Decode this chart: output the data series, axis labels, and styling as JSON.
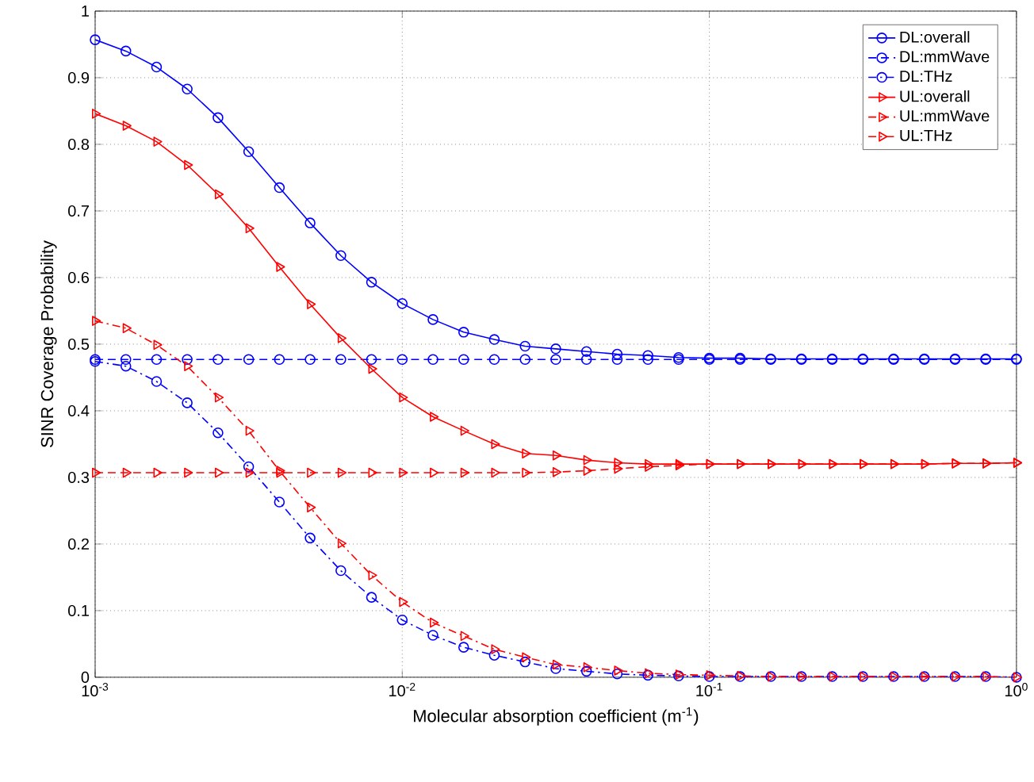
{
  "chart_data": {
    "type": "line",
    "xlabel": "Molecular absorption coefficient (m$^{-1}$)",
    "ylabel": "SINR Coverage Probability",
    "x": [
      0.001,
      0.001259,
      0.001585,
      0.001995,
      0.002512,
      0.003162,
      0.003981,
      0.005012,
      0.00631,
      0.007943,
      0.01,
      0.01259,
      0.01585,
      0.01995,
      0.02512,
      0.03162,
      0.03981,
      0.05012,
      0.0631,
      0.07943,
      0.1,
      0.1259,
      0.1585,
      0.1995,
      0.2512,
      0.3162,
      0.3981,
      0.5012,
      0.631,
      0.7943,
      1
    ],
    "series": [
      {
        "name": "DL:overall",
        "color": "#0000ff",
        "marker": "circle",
        "line_style": "solid",
        "values": [
          0.957,
          0.94,
          0.916,
          0.883,
          0.84,
          0.789,
          0.735,
          0.682,
          0.633,
          0.593,
          0.561,
          0.537,
          0.518,
          0.507,
          0.497,
          0.493,
          0.489,
          0.485,
          0.483,
          0.48,
          0.479,
          0.479,
          0.478,
          0.478,
          0.478,
          0.478,
          0.478,
          0.478,
          0.478,
          0.478,
          0.478
        ]
      },
      {
        "name": "DL:mmWave",
        "color": "#0000ff",
        "marker": "circle",
        "line_style": "dashed",
        "values": [
          0.477,
          0.477,
          0.477,
          0.477,
          0.477,
          0.477,
          0.477,
          0.477,
          0.477,
          0.477,
          0.477,
          0.477,
          0.477,
          0.477,
          0.477,
          0.477,
          0.477,
          0.477,
          0.477,
          0.477,
          0.477,
          0.477,
          0.477,
          0.477,
          0.477,
          0.477,
          0.477,
          0.477,
          0.477,
          0.477,
          0.477
        ]
      },
      {
        "name": "DL:THz",
        "color": "#0000ff",
        "marker": "circle",
        "line_style": "dashdot",
        "values": [
          0.474,
          0.467,
          0.444,
          0.412,
          0.367,
          0.316,
          0.263,
          0.209,
          0.16,
          0.12,
          0.086,
          0.063,
          0.045,
          0.033,
          0.023,
          0.013,
          0.009,
          0.005,
          0.003,
          0.002,
          0.001,
          0.001,
          0.001,
          0.001,
          0.001,
          0.001,
          0.001,
          0.001,
          0.001,
          0.001,
          0
        ]
      },
      {
        "name": "UL:overall",
        "color": "#ff0000",
        "marker": "triangle",
        "line_style": "solid",
        "values": [
          0.846,
          0.828,
          0.804,
          0.769,
          0.725,
          0.674,
          0.616,
          0.56,
          0.509,
          0.463,
          0.42,
          0.391,
          0.37,
          0.35,
          0.336,
          0.333,
          0.326,
          0.322,
          0.32,
          0.32,
          0.32,
          0.32,
          0.32,
          0.32,
          0.32,
          0.32,
          0.32,
          0.32,
          0.321,
          0.321,
          0.322
        ]
      },
      {
        "name": "UL:mmWave",
        "color": "#ff0000",
        "marker": "triangle",
        "line_style": "dashed",
        "values": [
          0.307,
          0.307,
          0.307,
          0.307,
          0.307,
          0.307,
          0.307,
          0.307,
          0.307,
          0.307,
          0.307,
          0.307,
          0.307,
          0.307,
          0.307,
          0.308,
          0.31,
          0.313,
          0.316,
          0.318,
          0.32,
          0.32,
          0.32,
          0.32,
          0.32,
          0.32,
          0.32,
          0.32,
          0.321,
          0.321,
          0.322
        ]
      },
      {
        "name": "UL:THz",
        "color": "#ff0000",
        "marker": "triangle",
        "line_style": "dashdot",
        "values": [
          0.535,
          0.524,
          0.499,
          0.467,
          0.42,
          0.37,
          0.31,
          0.255,
          0.201,
          0.153,
          0.113,
          0.082,
          0.062,
          0.042,
          0.03,
          0.019,
          0.015,
          0.01,
          0.006,
          0.004,
          0.003,
          0.002,
          0.001,
          0.001,
          0.001,
          0.001,
          0.001,
          0.001,
          0.001,
          0.001,
          0
        ]
      }
    ],
    "log": "x",
    "xlim": [
      0.001,
      1
    ],
    "xticks": [
      {
        "value": 0.001,
        "label": "10$^{-3}$"
      },
      {
        "value": 0.01,
        "label": "10$^{-2}$"
      },
      {
        "value": 0.1,
        "label": "10$^{-1}$"
      },
      {
        "value": 1,
        "label": "10$^{0}$"
      }
    ],
    "ylim": [
      0,
      1
    ],
    "yticks": [
      0,
      0.1,
      0.2,
      0.3,
      0.4,
      0.5,
      0.6,
      0.7,
      0.8,
      0.9,
      1
    ],
    "grid": true,
    "legend": "top right"
  }
}
